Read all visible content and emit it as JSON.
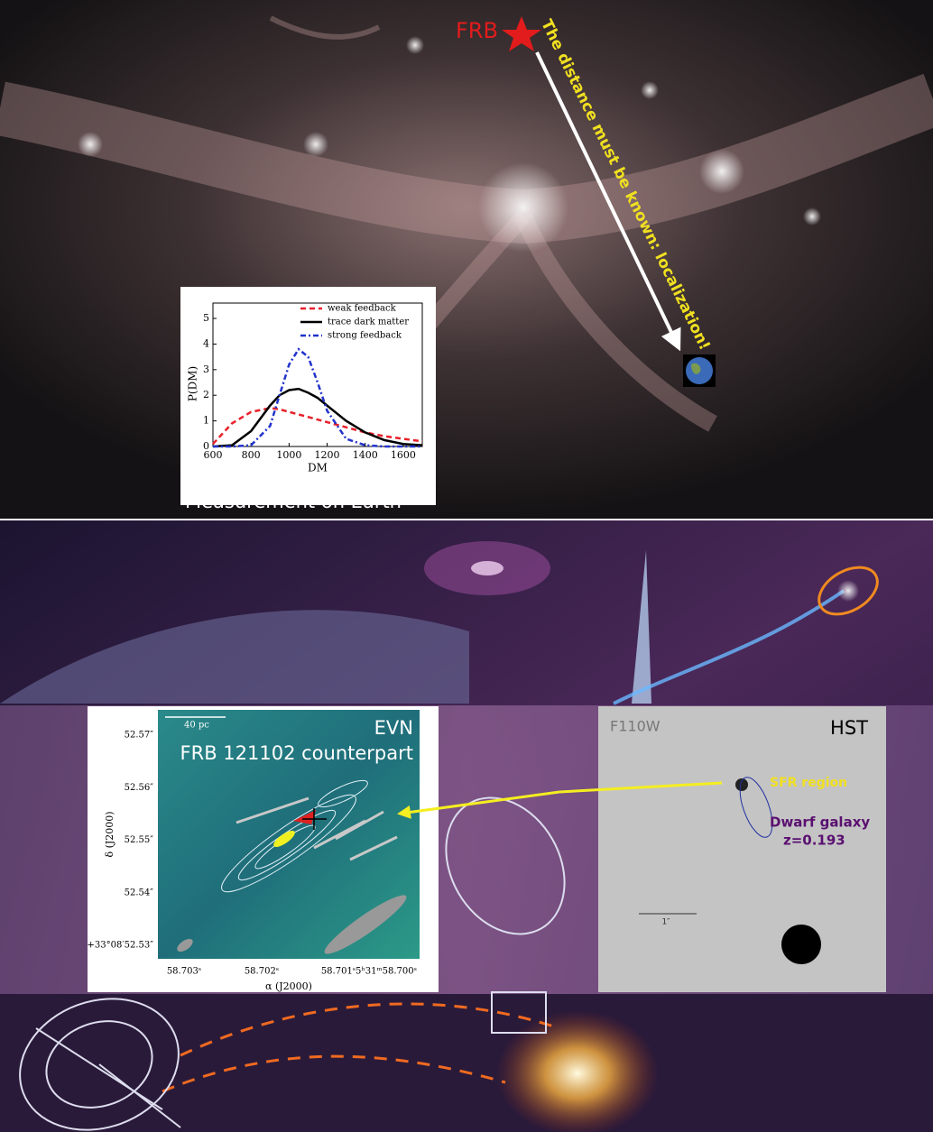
{
  "top_panel": {
    "label": "FRB",
    "arrow_text": "The distance must be known: localization!",
    "caption": "Measurement on Earth"
  },
  "chart_data": {
    "type": "line",
    "xlabel": "DM",
    "ylabel": "P(DM)",
    "x": [
      600,
      700,
      800,
      900,
      950,
      1000,
      1050,
      1100,
      1150,
      1200,
      1300,
      1400,
      1500,
      1600,
      1700
    ],
    "series": [
      {
        "name": "weak feedback",
        "color": "#e8202a",
        "style": "dashed",
        "values": [
          0.1,
          0.9,
          1.35,
          1.5,
          1.45,
          1.35,
          1.25,
          1.15,
          1.05,
          0.95,
          0.75,
          0.55,
          0.4,
          0.3,
          0.2
        ]
      },
      {
        "name": "trace dark matter",
        "color": "#000000",
        "style": "solid",
        "values": [
          0,
          0.05,
          0.6,
          1.6,
          2.0,
          2.2,
          2.25,
          2.1,
          1.9,
          1.6,
          1.0,
          0.55,
          0.25,
          0.1,
          0.05
        ]
      },
      {
        "name": "strong feedback",
        "color": "#2233cc",
        "style": "dashdot",
        "values": [
          0,
          0,
          0.05,
          0.8,
          2.0,
          3.2,
          3.8,
          3.5,
          2.5,
          1.4,
          0.3,
          0.05,
          0,
          0,
          0
        ]
      }
    ],
    "xlim": [
      600,
      1700
    ],
    "ylim": [
      0,
      5.6
    ],
    "xticks": [
      600,
      800,
      1000,
      1200,
      1400,
      1600
    ],
    "yticks": [
      0,
      1,
      2,
      3,
      4,
      5
    ],
    "legend": "upper right"
  },
  "evn_panel": {
    "title": "EVN",
    "subtitle": "FRB 121102 counterpart",
    "scale": "40 pc",
    "ylabel": "δ (J2000)",
    "xlabel": "α (J2000)",
    "yticks": [
      "52.57″",
      "52.56″",
      "52.55″",
      "52.54″",
      "+33°08′52.53″"
    ],
    "xticks": [
      "58.703ˢ",
      "58.702ˢ",
      "58.701ˢ",
      "5ʰ31ᵐ58.700ˢ"
    ]
  },
  "hst_panel": {
    "filter": "F110W",
    "title": "HST",
    "sfr": "SFR region",
    "galaxy": "Dwarf galaxy",
    "redshift": "z=0.193",
    "scale": "1″"
  }
}
